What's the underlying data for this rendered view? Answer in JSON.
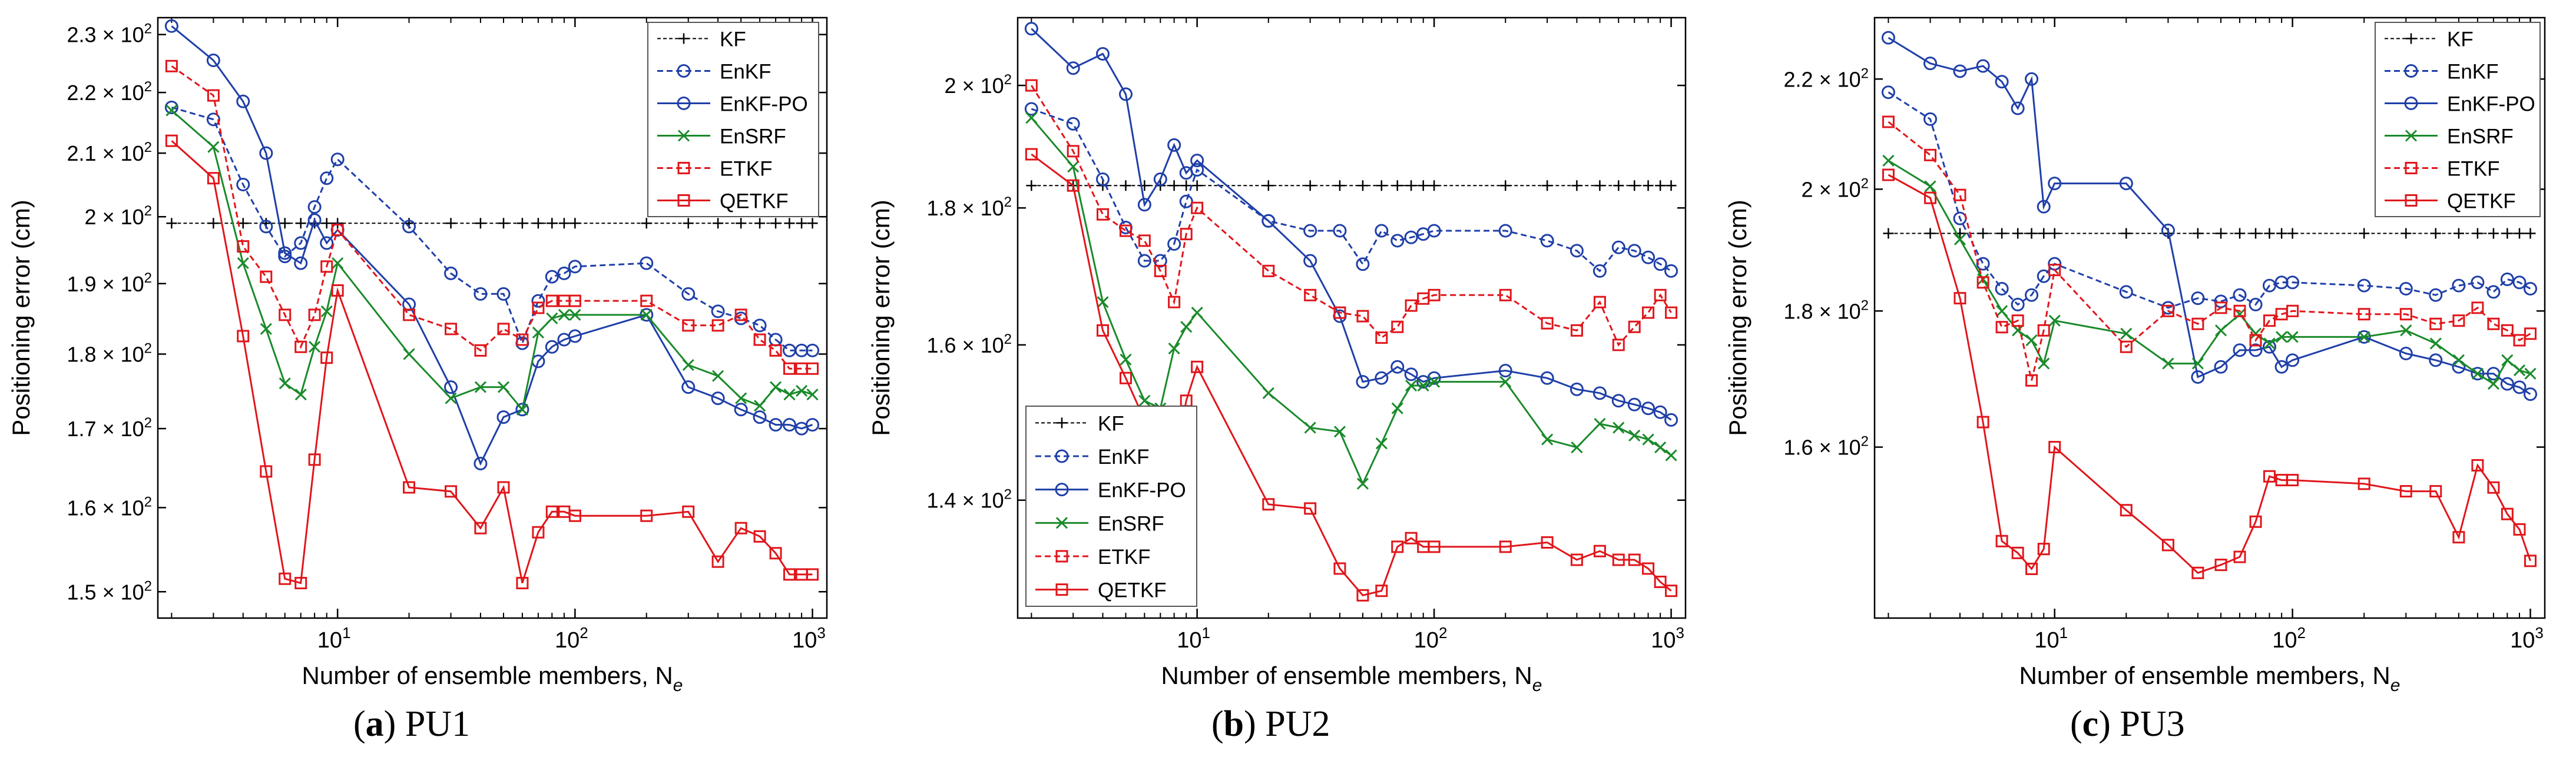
{
  "figure": {
    "captions": [
      {
        "letter": "a",
        "text": "PU1"
      },
      {
        "letter": "b",
        "text": "PU2"
      },
      {
        "letter": "c",
        "text": "PU3"
      }
    ]
  },
  "colors": {
    "KF": "#000000",
    "EnKF": "#1f3fa8",
    "EnKF-PO": "#1f3fa8",
    "EnSRF": "#1a8a2a",
    "ETKF": "#e0161b",
    "QETKF": "#e0161b"
  },
  "chart_data": [
    {
      "type": "line",
      "id": "PU1",
      "title": "",
      "xlabel": "Number of ensemble members, N",
      "xlabel_sub": "e",
      "ylabel": "Positioning error (cm)",
      "xscale": "log",
      "yscale": "log",
      "xlim": [
        1.75,
        1150
      ],
      "ylim": [
        147,
        233
      ],
      "xticks": [
        {
          "value": 10,
          "base": "10",
          "exp": "1"
        },
        {
          "value": 100,
          "base": "10",
          "exp": "2"
        },
        {
          "value": 1000,
          "base": "10",
          "exp": "3"
        }
      ],
      "yticks": [
        {
          "value": 150,
          "mant": "1.5"
        },
        {
          "value": 160,
          "mant": "1.6"
        },
        {
          "value": 170,
          "mant": "1.7"
        },
        {
          "value": 180,
          "mant": "1.8"
        },
        {
          "value": 190,
          "mant": "1.9"
        },
        {
          "value": 200,
          "mant": "2"
        },
        {
          "value": 210,
          "mant": "2.1"
        },
        {
          "value": 220,
          "mant": "2.2"
        },
        {
          "value": 230,
          "mant": "2.3"
        }
      ],
      "ytick_suffix": "× 10",
      "ytick_exp": "2",
      "legend_position": "top-right",
      "x": [
        2,
        3,
        4,
        5,
        6,
        7,
        8,
        9,
        10,
        20,
        30,
        40,
        50,
        60,
        70,
        80,
        90,
        100,
        200,
        300,
        400,
        500,
        600,
        700,
        800,
        900,
        1000
      ],
      "series": [
        {
          "name": "KF",
          "style": "dash",
          "marker": "plus",
          "values": [
            199,
            199,
            199,
            199,
            199,
            199,
            199,
            199,
            199,
            199,
            199,
            199,
            199,
            199,
            199,
            199,
            199,
            199,
            199,
            199,
            199,
            199,
            199,
            199,
            199,
            199,
            199
          ]
        },
        {
          "name": "EnKF",
          "style": "dash",
          "marker": "circle",
          "values": [
            217.5,
            215.5,
            205,
            198.5,
            194,
            196,
            201.5,
            206,
            209,
            198.5,
            191.5,
            188.5,
            188.5,
            181.5,
            187.5,
            191,
            191.5,
            192.5,
            193,
            188.5,
            186,
            185,
            184,
            182,
            180.5,
            180.5,
            180.5
          ]
        },
        {
          "name": "EnKF-PO",
          "style": "solid",
          "marker": "circle",
          "values": [
            231.5,
            225.5,
            218.5,
            210,
            194.5,
            193,
            199.5,
            196,
            198,
            187,
            175.5,
            165.5,
            171.5,
            172.5,
            179,
            181,
            182,
            182.5,
            185.5,
            175.5,
            174,
            172.5,
            171.5,
            170.5,
            170.5,
            170,
            170.5
          ]
        },
        {
          "name": "EnSRF",
          "style": "solid",
          "marker": "x",
          "values": [
            217,
            211,
            193,
            183.5,
            176,
            174.5,
            181,
            186,
            193,
            180,
            174,
            175.5,
            175.5,
            172.5,
            183,
            185,
            185.5,
            185.5,
            185.5,
            178.5,
            177,
            174,
            173,
            175.5,
            174.5,
            175,
            174.5
          ]
        },
        {
          "name": "ETKF",
          "style": "dash",
          "marker": "square",
          "values": [
            224.5,
            219.5,
            195.5,
            191,
            185.5,
            181,
            185.5,
            192.5,
            198,
            185.5,
            183.5,
            180.5,
            183.5,
            182,
            186.5,
            187.5,
            187.5,
            187.5,
            187.5,
            184,
            184,
            185.5,
            182,
            180.5,
            178,
            178,
            178
          ]
        },
        {
          "name": "QETKF",
          "style": "solid",
          "marker": "square",
          "values": [
            212,
            206,
            182.5,
            164.5,
            151.5,
            151,
            166,
            179.5,
            189,
            162.5,
            162,
            157.5,
            162.5,
            151,
            157,
            159.5,
            159.5,
            159,
            159,
            159.5,
            153.5,
            157.5,
            156.5,
            154.5,
            152,
            152,
            152
          ]
        }
      ]
    },
    {
      "type": "line",
      "id": "PU2",
      "title": "",
      "xlabel": "Number of ensemble members, N",
      "xlabel_sub": "e",
      "ylabel": "Positioning error (cm)",
      "xscale": "log",
      "yscale": "log",
      "xlim": [
        1.75,
        1150
      ],
      "ylim": [
        126.5,
        212
      ],
      "xticks": [
        {
          "value": 10,
          "base": "10",
          "exp": "1"
        },
        {
          "value": 100,
          "base": "10",
          "exp": "2"
        },
        {
          "value": 1000,
          "base": "10",
          "exp": "3"
        }
      ],
      "yticks": [
        {
          "value": 140,
          "mant": "1.4"
        },
        {
          "value": 160,
          "mant": "1.6"
        },
        {
          "value": 180,
          "mant": "1.8"
        },
        {
          "value": 200,
          "mant": "2"
        }
      ],
      "ytick_suffix": "× 10",
      "ytick_exp": "2",
      "legend_position": "bottom-left",
      "x": [
        2,
        3,
        4,
        5,
        6,
        7,
        8,
        9,
        10,
        20,
        30,
        40,
        50,
        60,
        70,
        80,
        90,
        100,
        200,
        300,
        400,
        500,
        600,
        700,
        800,
        900,
        1000
      ],
      "series": [
        {
          "name": "KF",
          "style": "dash",
          "marker": "plus",
          "values": [
            183.5,
            183.5,
            183.5,
            183.5,
            183.5,
            183.5,
            183.5,
            183.5,
            183.5,
            183.5,
            183.5,
            183.5,
            183.5,
            183.5,
            183.5,
            183.5,
            183.5,
            183.5,
            183.5,
            183.5,
            183.5,
            183.5,
            183.5,
            183.5,
            183.5,
            183.5,
            183.5
          ]
        },
        {
          "name": "EnKF",
          "style": "dash",
          "marker": "circle",
          "values": [
            196,
            193.5,
            184.5,
            177,
            172,
            172,
            174.5,
            181,
            186,
            178,
            176.5,
            176.5,
            171.5,
            176.5,
            175,
            175.5,
            176,
            176.5,
            176.5,
            175,
            173.5,
            170.5,
            174,
            173.5,
            172.5,
            171.5,
            170.5
          ]
        },
        {
          "name": "EnKF-PO",
          "style": "solid",
          "marker": "circle",
          "values": [
            210,
            203,
            205.5,
            198.5,
            180.5,
            184.5,
            190,
            185.5,
            187.5,
            178,
            172,
            164,
            155,
            155.5,
            157,
            156,
            155,
            155.5,
            156.5,
            155.5,
            154,
            153.5,
            152.5,
            152,
            151.5,
            151,
            150
          ]
        },
        {
          "name": "EnSRF",
          "style": "solid",
          "marker": "x",
          "values": [
            194.5,
            186.5,
            166,
            158,
            152.5,
            151.5,
            159.5,
            162.5,
            164.5,
            153.5,
            149,
            148.5,
            142,
            147,
            151.5,
            154.5,
            154.5,
            155,
            155,
            147.5,
            146.5,
            149.5,
            149,
            148,
            147.5,
            146.5,
            145.5
          ]
        },
        {
          "name": "ETKF",
          "style": "dash",
          "marker": "square",
          "values": [
            200,
            189,
            179,
            176.5,
            175,
            170.5,
            166,
            176,
            180,
            170.5,
            167,
            164.5,
            164,
            161,
            162.5,
            165.5,
            166.5,
            167,
            167,
            163,
            162,
            166,
            160,
            162.5,
            164.5,
            167,
            164.5
          ]
        },
        {
          "name": "QETKF",
          "style": "solid",
          "marker": "square",
          "values": [
            188.5,
            183.5,
            162,
            155.5,
            150,
            148,
            144,
            152.5,
            157,
            139.5,
            139,
            132,
            129,
            129.5,
            134.5,
            135.5,
            134.5,
            134.5,
            134.5,
            135,
            133,
            134,
            133,
            133,
            132,
            130.5,
            129.5
          ]
        }
      ]
    },
    {
      "type": "line",
      "id": "PU3",
      "title": "",
      "xlabel": "Number of ensemble members, N",
      "xlabel_sub": "e",
      "ylabel": "Positioning error (cm)",
      "xscale": "log",
      "yscale": "log",
      "xlim": [
        1.75,
        1150
      ],
      "ylim": [
        138,
        232
      ],
      "xticks": [
        {
          "value": 10,
          "base": "10",
          "exp": "1"
        },
        {
          "value": 100,
          "base": "10",
          "exp": "2"
        },
        {
          "value": 1000,
          "base": "10",
          "exp": "3"
        }
      ],
      "yticks": [
        {
          "value": 160,
          "mant": "1.6"
        },
        {
          "value": 180,
          "mant": "1.8"
        },
        {
          "value": 200,
          "mant": "2"
        },
        {
          "value": 220,
          "mant": "2.2"
        }
      ],
      "ytick_suffix": "× 10",
      "ytick_exp": "2",
      "legend_position": "top-right",
      "x": [
        2,
        3,
        4,
        5,
        6,
        7,
        8,
        9,
        10,
        20,
        30,
        40,
        50,
        60,
        70,
        80,
        90,
        100,
        200,
        300,
        400,
        500,
        600,
        700,
        800,
        900,
        1000
      ],
      "series": [
        {
          "name": "KF",
          "style": "dash",
          "marker": "plus",
          "values": [
            192.5,
            192.5,
            192.5,
            192.5,
            192.5,
            192.5,
            192.5,
            192.5,
            192.5,
            192.5,
            192.5,
            192.5,
            192.5,
            192.5,
            192.5,
            192.5,
            192.5,
            192.5,
            192.5,
            192.5,
            192.5,
            192.5,
            192.5,
            192.5,
            192.5,
            192.5,
            192.5
          ]
        },
        {
          "name": "EnKF",
          "style": "dash",
          "marker": "circle",
          "values": [
            217.5,
            212.5,
            195,
            187.5,
            183.5,
            181,
            182.5,
            185.5,
            187.5,
            183,
            180.5,
            182,
            181.5,
            182.5,
            181,
            184,
            184.5,
            184.5,
            184,
            183.5,
            182.5,
            184,
            184.5,
            183,
            185,
            184.5,
            183.5
          ]
        },
        {
          "name": "EnKF-PO",
          "style": "solid",
          "marker": "circle",
          "values": [
            228,
            223,
            221.5,
            222.5,
            219.5,
            214.5,
            220,
            197,
            201,
            201,
            193,
            170,
            171.5,
            174,
            174,
            174.5,
            171.5,
            172.5,
            176,
            173.5,
            172.5,
            171.5,
            170.5,
            170.5,
            169,
            168.5,
            167.5
          ]
        },
        {
          "name": "EnSRF",
          "style": "solid",
          "marker": "x",
          "values": [
            205,
            200.5,
            191.5,
            185,
            180,
            177,
            175.5,
            172,
            178.5,
            176.5,
            172,
            172,
            177,
            179.5,
            176.5,
            175,
            176,
            176,
            176,
            177,
            175,
            172.5,
            170.5,
            169,
            172.5,
            171,
            170.5
          ]
        },
        {
          "name": "ETKF",
          "style": "dash",
          "marker": "square",
          "values": [
            212,
            206,
            199,
            184.5,
            177.5,
            178.5,
            169.5,
            177,
            186.5,
            174.5,
            180,
            178,
            180.5,
            180,
            175.5,
            178.5,
            179.5,
            180,
            179.5,
            179.5,
            178,
            178.5,
            180.5,
            178,
            177,
            175.5,
            176.5
          ]
        },
        {
          "name": "QETKF",
          "style": "solid",
          "marker": "square",
          "values": [
            202.5,
            198.5,
            182,
            163.5,
            147.5,
            146,
            144,
            146.5,
            160,
            151.5,
            147,
            143.5,
            144.5,
            145.5,
            150,
            156,
            155.5,
            155.5,
            155,
            154,
            154,
            148,
            157.5,
            154.5,
            151,
            149,
            145
          ]
        }
      ]
    }
  ]
}
